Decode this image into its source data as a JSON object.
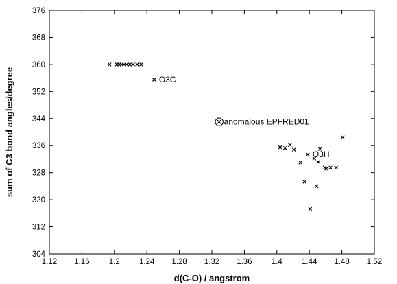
{
  "chart_data": {
    "type": "scatter",
    "title": "",
    "xlabel": "d(C-O) / angstrom",
    "ylabel": "sum of C3 bond angles/degree",
    "xlim": [
      1.12,
      1.52
    ],
    "ylim": [
      304,
      376
    ],
    "xticks": [
      1.12,
      1.16,
      1.2,
      1.24,
      1.28,
      1.32,
      1.36,
      1.4,
      1.44,
      1.48,
      1.52
    ],
    "yticks": [
      304,
      312,
      320,
      328,
      336,
      344,
      352,
      360,
      368,
      376
    ],
    "xtick_labels": [
      "1.12",
      "1.16",
      "1.2",
      "1.24",
      "1.28",
      "1.32",
      "1.36",
      "1.4",
      "1.44",
      "1.48",
      "1.52"
    ],
    "ytick_labels": [
      "304",
      "312",
      "320",
      "328",
      "336",
      "344",
      "352",
      "360",
      "368",
      "376"
    ],
    "grid": false,
    "legend": "none",
    "series": [
      {
        "marker": "x",
        "points": [
          [
            1.194,
            360
          ],
          [
            1.203,
            360
          ],
          [
            1.206,
            360
          ],
          [
            1.209,
            360
          ],
          [
            1.212,
            360
          ],
          [
            1.215,
            360
          ],
          [
            1.219,
            360
          ],
          [
            1.223,
            360
          ],
          [
            1.228,
            360
          ],
          [
            1.233,
            360
          ],
          [
            1.249,
            355.5
          ],
          [
            1.404,
            335.5
          ],
          [
            1.41,
            335.3
          ],
          [
            1.416,
            336.2
          ],
          [
            1.421,
            334.8
          ],
          [
            1.429,
            331
          ],
          [
            1.434,
            325.3
          ],
          [
            1.438,
            333.4
          ],
          [
            1.441,
            317.3
          ],
          [
            1.446,
            332.2
          ],
          [
            1.449,
            324
          ],
          [
            1.451,
            331.2
          ],
          [
            1.453,
            335
          ],
          [
            1.459,
            329.5
          ],
          [
            1.461,
            329.2
          ],
          [
            1.466,
            329.5
          ],
          [
            1.473,
            329.5
          ],
          [
            1.481,
            338.5
          ]
        ]
      },
      {
        "marker": "circled-x",
        "points": [
          [
            1.329,
            343
          ]
        ]
      }
    ],
    "annotations": [
      {
        "text": "O3C",
        "x": 1.249,
        "y": 355.5
      },
      {
        "text": "anomalous EPFRED01",
        "x": 1.329,
        "y": 343
      },
      {
        "text": "O3H",
        "x": 1.438,
        "y": 333.4
      }
    ]
  }
}
